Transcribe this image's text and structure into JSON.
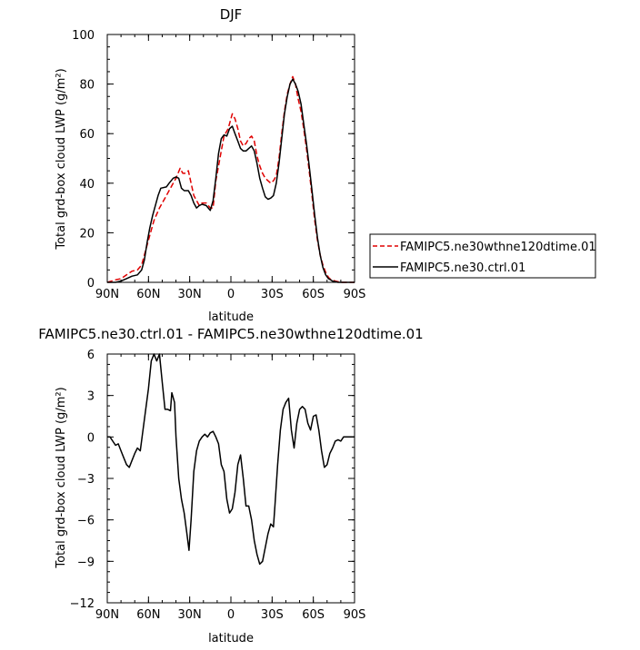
{
  "chart_data": [
    {
      "type": "line",
      "title": "DJF",
      "xlabel": "latitude",
      "ylabel": "Total grd-box cloud LWP (g/m²)",
      "xlim": [
        90,
        -90
      ],
      "ylim": [
        0,
        100
      ],
      "x_ticks": [
        90,
        60,
        30,
        0,
        -30,
        -60,
        -90
      ],
      "x_tick_labels": [
        "90N",
        "60N",
        "30N",
        "0",
        "30S",
        "60S",
        "90S"
      ],
      "y_ticks": [
        0,
        20,
        40,
        60,
        80,
        100
      ],
      "y_tick_labels": [
        "0",
        "20",
        "40",
        "60",
        "80",
        "100"
      ],
      "legend_position": "right",
      "series": [
        {
          "name": "FAMIPC5.ne30wthne120dtime.01",
          "color": "#e00000",
          "dash": "dashed",
          "points": [
            [
              90,
              0
            ],
            [
              84,
              1
            ],
            [
              80,
              1.5
            ],
            [
              76,
              3
            ],
            [
              72,
              4.5
            ],
            [
              68,
              5
            ],
            [
              65,
              7
            ],
            [
              62,
              13
            ],
            [
              59,
              19
            ],
            [
              56,
              25
            ],
            [
              52,
              30
            ],
            [
              48,
              34
            ],
            [
              44,
              38
            ],
            [
              40,
              42
            ],
            [
              37,
              46
            ],
            [
              35,
              44
            ],
            [
              33,
              44
            ],
            [
              31,
              45
            ],
            [
              29,
              40
            ],
            [
              27,
              35
            ],
            [
              25,
              33
            ],
            [
              23,
              31
            ],
            [
              21,
              32
            ],
            [
              18,
              32
            ],
            [
              15,
              30
            ],
            [
              13,
              30
            ],
            [
              11,
              41
            ],
            [
              8,
              50
            ],
            [
              5,
              59
            ],
            [
              2,
              62
            ],
            [
              0,
              66
            ],
            [
              -1,
              68
            ],
            [
              -3,
              66
            ],
            [
              -5,
              62
            ],
            [
              -7,
              57
            ],
            [
              -9,
              55
            ],
            [
              -11,
              56
            ],
            [
              -13,
              58
            ],
            [
              -15,
              59
            ],
            [
              -17,
              57
            ],
            [
              -19,
              51
            ],
            [
              -21,
              47
            ],
            [
              -23,
              44
            ],
            [
              -25,
              42
            ],
            [
              -27,
              41
            ],
            [
              -29,
              40
            ],
            [
              -31,
              41
            ],
            [
              -33,
              43
            ],
            [
              -35,
              50
            ],
            [
              -37,
              60
            ],
            [
              -39,
              69
            ],
            [
              -41,
              76
            ],
            [
              -43,
              80
            ],
            [
              -45,
              83
            ],
            [
              -47,
              80
            ],
            [
              -49,
              74
            ],
            [
              -51,
              69
            ],
            [
              -53,
              62
            ],
            [
              -55,
              54
            ],
            [
              -57,
              45
            ],
            [
              -59,
              35
            ],
            [
              -61,
              25
            ],
            [
              -63,
              17
            ],
            [
              -65,
              11
            ],
            [
              -67,
              7
            ],
            [
              -69,
              4
            ],
            [
              -71,
              2
            ],
            [
              -73,
              1
            ],
            [
              -76,
              0.5
            ],
            [
              -80,
              0
            ],
            [
              -90,
              0
            ]
          ]
        },
        {
          "name": "FAMIPC5.ne30.ctrl.01",
          "color": "#000000",
          "dash": "solid",
          "points": [
            [
              90,
              0
            ],
            [
              84,
              0
            ],
            [
              80,
              0.5
            ],
            [
              76,
              1.5
            ],
            [
              72,
              2.5
            ],
            [
              68,
              3
            ],
            [
              65,
              5
            ],
            [
              63,
              9
            ],
            [
              61,
              16
            ],
            [
              59,
              22
            ],
            [
              57,
              27
            ],
            [
              55,
              31
            ],
            [
              53,
              35
            ],
            [
              51,
              38
            ],
            [
              47,
              38.5
            ],
            [
              45,
              40
            ],
            [
              42,
              42
            ],
            [
              40,
              42.5
            ],
            [
              38,
              42
            ],
            [
              36,
              38
            ],
            [
              34,
              37
            ],
            [
              31,
              37
            ],
            [
              29,
              35
            ],
            [
              27,
              32
            ],
            [
              25,
              30
            ],
            [
              23,
              31
            ],
            [
              21,
              31.5
            ],
            [
              18,
              31
            ],
            [
              15,
              29
            ],
            [
              13,
              33
            ],
            [
              11,
              42
            ],
            [
              9,
              52
            ],
            [
              7,
              58
            ],
            [
              5,
              59.5
            ],
            [
              3,
              59
            ],
            [
              1,
              62
            ],
            [
              -1,
              63
            ],
            [
              -3,
              60
            ],
            [
              -5,
              57
            ],
            [
              -7,
              54
            ],
            [
              -9,
              53
            ],
            [
              -11,
              53
            ],
            [
              -13,
              54
            ],
            [
              -15,
              55
            ],
            [
              -17,
              53
            ],
            [
              -19,
              48
            ],
            [
              -21,
              42
            ],
            [
              -23,
              38
            ],
            [
              -25,
              34.5
            ],
            [
              -27,
              33.5
            ],
            [
              -29,
              34
            ],
            [
              -31,
              35
            ],
            [
              -33,
              40
            ],
            [
              -35,
              48
            ],
            [
              -37,
              58
            ],
            [
              -39,
              68
            ],
            [
              -41,
              75
            ],
            [
              -43,
              80
            ],
            [
              -45,
              82
            ],
            [
              -47,
              80
            ],
            [
              -49,
              77
            ],
            [
              -51,
              72
            ],
            [
              -53,
              64
            ],
            [
              -55,
              56
            ],
            [
              -57,
              47
            ],
            [
              -59,
              37
            ],
            [
              -61,
              27
            ],
            [
              -63,
              18
            ],
            [
              -65,
              11
            ],
            [
              -67,
              6
            ],
            [
              -69,
              3
            ],
            [
              -71,
              1.5
            ],
            [
              -74,
              0.5
            ],
            [
              -78,
              0
            ],
            [
              -90,
              0
            ]
          ]
        }
      ]
    },
    {
      "type": "line",
      "title": "FAMIPC5.ne30.ctrl.01 - FAMIPC5.ne30wthne120dtime.01",
      "xlabel": "latitude",
      "ylabel": "Total grd-box cloud LWP (g/m²)",
      "xlim": [
        90,
        -90
      ],
      "ylim": [
        -12,
        6
      ],
      "x_ticks": [
        90,
        60,
        30,
        0,
        -30,
        -60,
        -90
      ],
      "x_tick_labels": [
        "90N",
        "60N",
        "30N",
        "0",
        "30S",
        "60S",
        "90S"
      ],
      "y_ticks": [
        -12,
        -9,
        -6,
        -3,
        0,
        3,
        6
      ],
      "y_tick_labels": [
        "−12",
        "−9",
        "−6",
        "−3",
        "0",
        "3",
        "6"
      ],
      "series": [
        {
          "color": "#000000",
          "dash": "solid",
          "points": [
            [
              90,
              0
            ],
            [
              88,
              0
            ],
            [
              86,
              -0.3
            ],
            [
              84,
              -0.6
            ],
            [
              82,
              -0.5
            ],
            [
              80,
              -1
            ],
            [
              78,
              -1.5
            ],
            [
              76,
              -2
            ],
            [
              74,
              -2.2
            ],
            [
              72,
              -1.7
            ],
            [
              70,
              -1.2
            ],
            [
              68,
              -0.8
            ],
            [
              66,
              -1
            ],
            [
              64,
              0.5
            ],
            [
              62,
              2
            ],
            [
              60,
              3.5
            ],
            [
              58,
              5.5
            ],
            [
              56,
              6
            ],
            [
              54,
              5.5
            ],
            [
              52,
              6
            ],
            [
              50,
              4
            ],
            [
              48,
              2
            ],
            [
              46,
              2
            ],
            [
              44,
              1.9
            ],
            [
              43,
              3.2
            ],
            [
              41,
              2.5
            ],
            [
              40,
              0
            ],
            [
              38,
              -3
            ],
            [
              36,
              -4.5
            ],
            [
              34,
              -5.5
            ],
            [
              32,
              -7
            ],
            [
              30.5,
              -8.2
            ],
            [
              29,
              -6
            ],
            [
              27,
              -2.5
            ],
            [
              25,
              -1
            ],
            [
              23,
              -0.3
            ],
            [
              21,
              0
            ],
            [
              19,
              0.2
            ],
            [
              17,
              0
            ],
            [
              15,
              0.3
            ],
            [
              13,
              0.4
            ],
            [
              11,
              0
            ],
            [
              9,
              -0.5
            ],
            [
              7,
              -2
            ],
            [
              5,
              -2.5
            ],
            [
              3,
              -4.5
            ],
            [
              1,
              -5.5
            ],
            [
              -1,
              -5.2
            ],
            [
              -3,
              -4
            ],
            [
              -5,
              -2
            ],
            [
              -7,
              -1.3
            ],
            [
              -9,
              -3
            ],
            [
              -11,
              -5
            ],
            [
              -13,
              -5
            ],
            [
              -15,
              -6
            ],
            [
              -17,
              -7.5
            ],
            [
              -19,
              -8.5
            ],
            [
              -21,
              -9.2
            ],
            [
              -23,
              -9
            ],
            [
              -25,
              -8
            ],
            [
              -27,
              -7
            ],
            [
              -29,
              -6.3
            ],
            [
              -31,
              -6.5
            ],
            [
              -32,
              -5
            ],
            [
              -34,
              -2
            ],
            [
              -36,
              0.5
            ],
            [
              -38,
              2
            ],
            [
              -40,
              2.5
            ],
            [
              -42,
              2.8
            ],
            [
              -44,
              0.5
            ],
            [
              -46,
              -0.8
            ],
            [
              -48,
              1
            ],
            [
              -50,
              2
            ],
            [
              -52,
              2.2
            ],
            [
              -54,
              2
            ],
            [
              -56,
              1
            ],
            [
              -58,
              0.5
            ],
            [
              -60,
              1.5
            ],
            [
              -62,
              1.6
            ],
            [
              -64,
              0.5
            ],
            [
              -66,
              -1
            ],
            [
              -68,
              -2.2
            ],
            [
              -70,
              -2
            ],
            [
              -72,
              -1.2
            ],
            [
              -74,
              -0.8
            ],
            [
              -76,
              -0.3
            ],
            [
              -78,
              -0.2
            ],
            [
              -80,
              -0.3
            ],
            [
              -82,
              0
            ],
            [
              -84,
              0
            ],
            [
              -90,
              0
            ]
          ]
        }
      ]
    }
  ]
}
